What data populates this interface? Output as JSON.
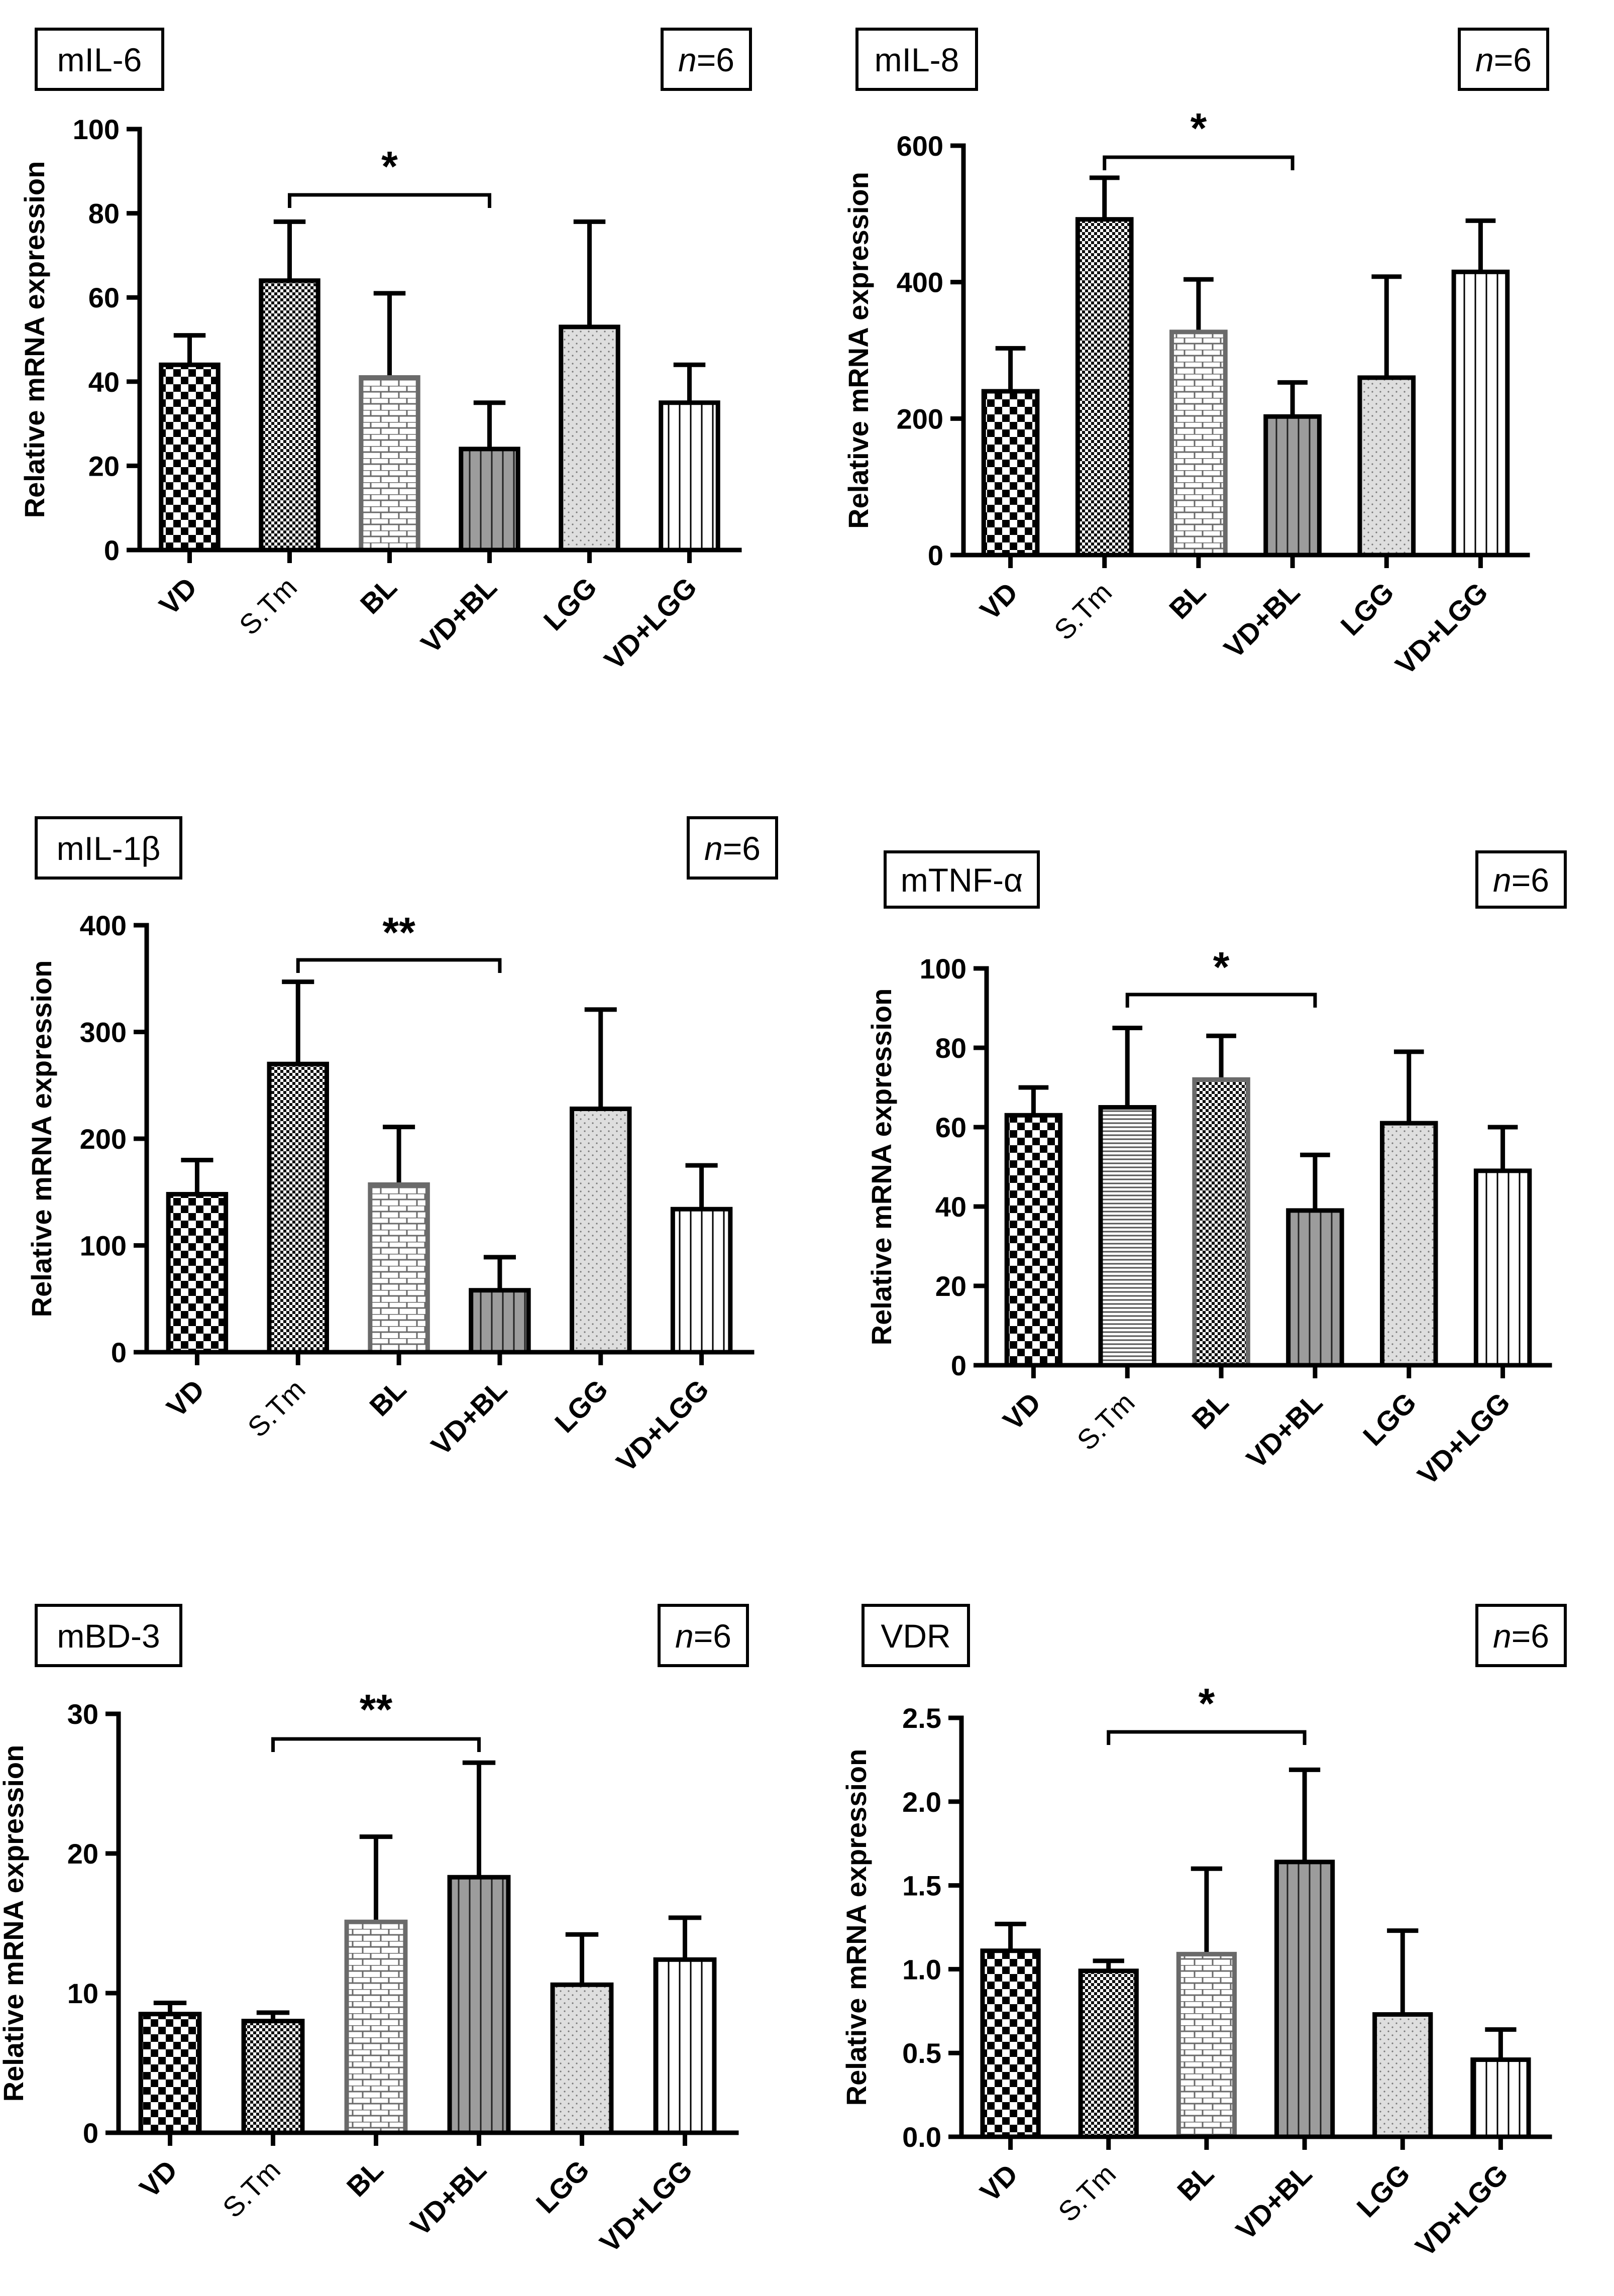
{
  "chart_data": [
    {
      "type": "bar",
      "title": "mIL-6",
      "n_label": {
        "italic": "n",
        "rest": "=6"
      },
      "xlabel": "",
      "ylabel": "Relative mRNA expression",
      "ylim": [
        0,
        100
      ],
      "yticks": [
        "0",
        "20",
        "40",
        "60",
        "80",
        "100"
      ],
      "categories": [
        "VD",
        "S.Tm",
        "BL",
        "VD+BL",
        "LGG",
        "VD+LGG"
      ],
      "values": [
        44,
        64,
        41,
        24,
        53,
        35
      ],
      "errors": [
        7,
        14,
        20,
        11,
        25,
        9
      ],
      "significance": {
        "from": "S.Tm",
        "to": "VD+BL",
        "label": "*"
      }
    },
    {
      "type": "bar",
      "title": "mIL-8",
      "n_label": {
        "italic": "n",
        "rest": "=6"
      },
      "xlabel": "",
      "ylabel": "Relative mRNA expression",
      "ylim": [
        0,
        600
      ],
      "yticks": [
        "0",
        "200",
        "400",
        "600"
      ],
      "categories": [
        "VD",
        "S.Tm",
        "BL",
        "VD+BL",
        "LGG",
        "VD+LGG"
      ],
      "values": [
        240,
        492,
        327,
        203,
        260,
        415
      ],
      "errors": [
        63,
        61,
        77,
        50,
        148,
        75
      ],
      "significance": {
        "from": "S.Tm",
        "to": "VD+BL",
        "label": "*"
      }
    },
    {
      "type": "bar",
      "title": "mIL-1β",
      "n_label": {
        "italic": "n",
        "rest": "=6"
      },
      "xlabel": "",
      "ylabel": "Relative mRNA expression",
      "ylim": [
        0,
        400
      ],
      "yticks": [
        "0",
        "100",
        "200",
        "300",
        "400"
      ],
      "categories": [
        "VD",
        "S.Tm",
        "BL",
        "VD+BL",
        "LGG",
        "VD+LGG"
      ],
      "values": [
        148,
        270,
        157,
        58,
        228,
        134
      ],
      "errors": [
        32,
        77,
        54,
        31,
        93,
        41
      ],
      "significance": {
        "from": "S.Tm",
        "to": "VD+BL",
        "label": "**"
      }
    },
    {
      "type": "bar",
      "title": "mTNF-α",
      "n_label": {
        "italic": "n",
        "rest": "=6"
      },
      "xlabel": "",
      "ylabel": "Relative mRNA expression",
      "ylim": [
        0,
        100
      ],
      "yticks": [
        "0",
        "20",
        "40",
        "60",
        "80",
        "100"
      ],
      "categories": [
        "VD",
        "S.Tm",
        "BL",
        "VD+BL",
        "LGG",
        "VD+LGG"
      ],
      "values": [
        63,
        65,
        72,
        39,
        61,
        49
      ],
      "errors": [
        7,
        20,
        11,
        14,
        18,
        11
      ],
      "significance": {
        "from": "S.Tm",
        "to": "VD+BL",
        "label": "*"
      }
    },
    {
      "type": "bar",
      "title": "mBD-3",
      "n_label": {
        "italic": "n",
        "rest": "=6"
      },
      "xlabel": "",
      "ylabel": "Relative mRNA expression",
      "ylim": [
        0,
        30
      ],
      "yticks": [
        "0",
        "10",
        "20",
        "30"
      ],
      "categories": [
        "VD",
        "S.Tm",
        "BL",
        "VD+BL",
        "LGG",
        "VD+LGG"
      ],
      "values": [
        8.5,
        8.0,
        15.1,
        18.3,
        10.6,
        12.4
      ],
      "errors": [
        0.8,
        0.6,
        6.1,
        8.2,
        3.6,
        3.0
      ],
      "significance": {
        "from": "S.Tm",
        "to": "VD+BL",
        "label": "**"
      }
    },
    {
      "type": "bar",
      "title": "VDR",
      "n_label": {
        "italic": "n",
        "rest": "=6"
      },
      "xlabel": "",
      "ylabel": "Relative mRNA expression",
      "ylim": [
        0,
        2.5
      ],
      "yticks": [
        "0.0",
        "0.5",
        "1.0",
        "1.5",
        "2.0",
        "2.5"
      ],
      "categories": [
        "VD",
        "S.Tm",
        "BL",
        "VD+BL",
        "LGG",
        "VD+LGG"
      ],
      "values": [
        1.11,
        0.99,
        1.09,
        1.64,
        0.73,
        0.46
      ],
      "errors": [
        0.16,
        0.06,
        0.51,
        0.55,
        0.5,
        0.18
      ],
      "significance": {
        "from": "S.Tm",
        "to": "VD+BL",
        "label": "*"
      }
    }
  ]
}
